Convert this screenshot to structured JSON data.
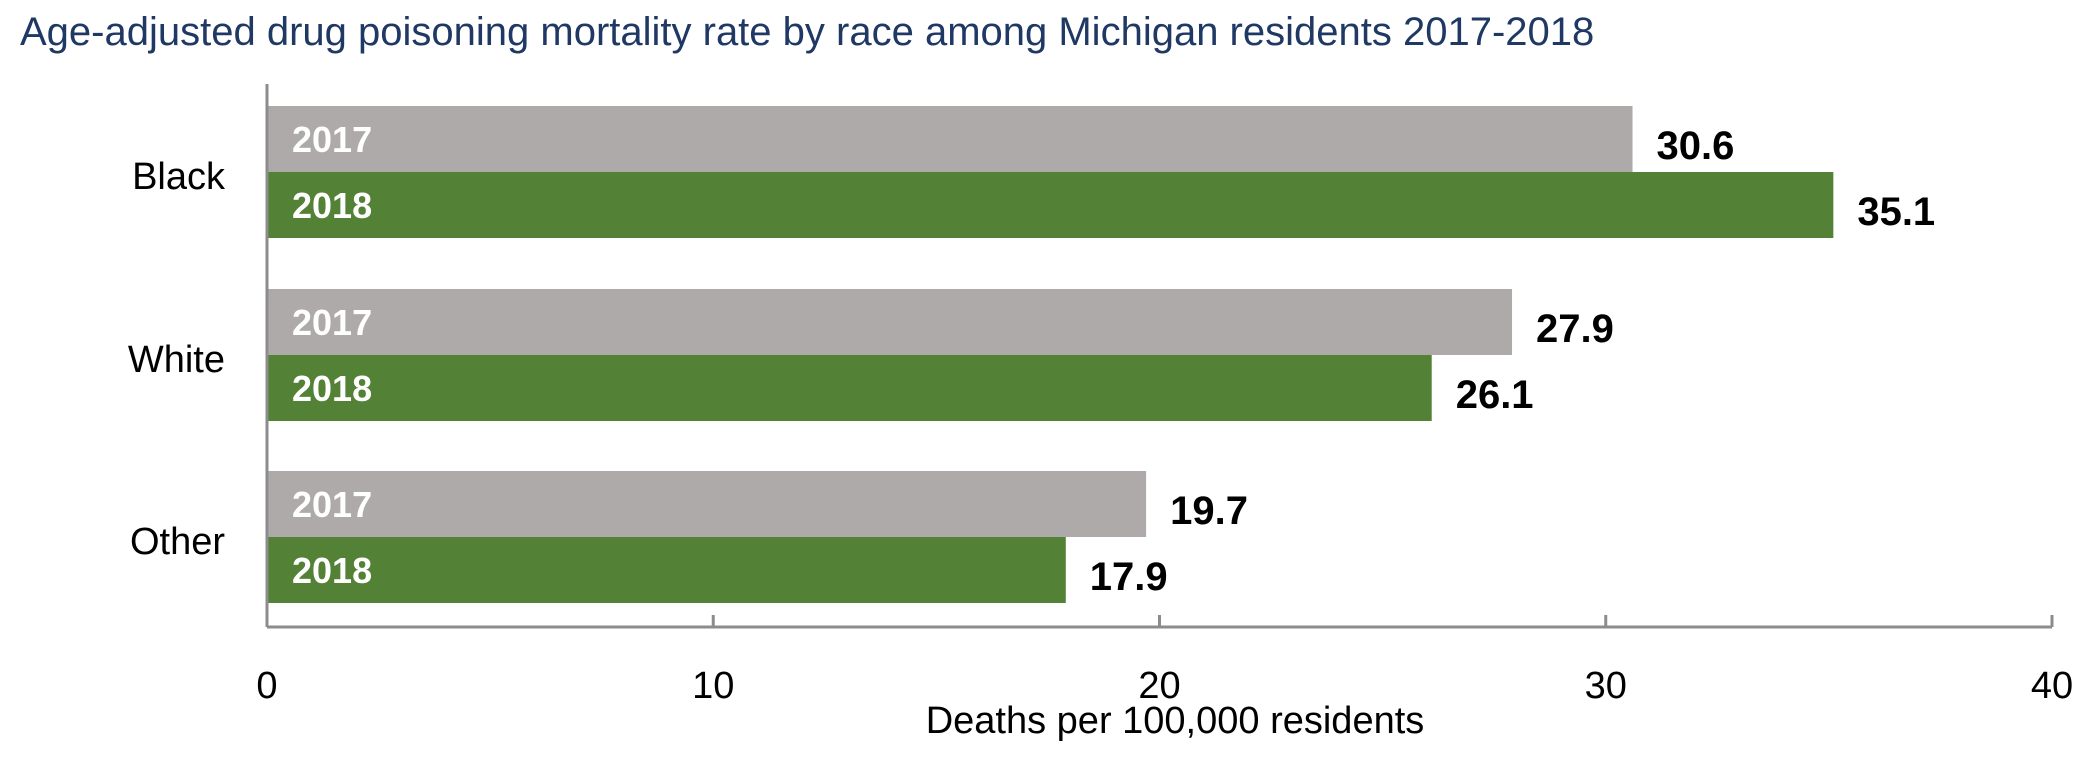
{
  "chart_data": {
    "type": "bar",
    "orientation": "horizontal",
    "title": "Age-adjusted drug poisoning mortality rate by race among Michigan residents 2017-2018",
    "xlabel": "Deaths per 100,000 residents",
    "ylabel": "",
    "categories": [
      "Black",
      "White",
      "Other"
    ],
    "series": [
      {
        "name": "2017",
        "color": "#aeaaaa",
        "values": [
          30.6,
          27.9,
          19.7
        ]
      },
      {
        "name": "2018",
        "color": "#538135",
        "values": [
          35.1,
          26.1,
          17.9
        ]
      }
    ],
    "xlim": [
      0,
      40
    ],
    "xticks": [
      0,
      10,
      20,
      30,
      40
    ],
    "grid": false,
    "legend": "none (series names shown inside bars)"
  }
}
